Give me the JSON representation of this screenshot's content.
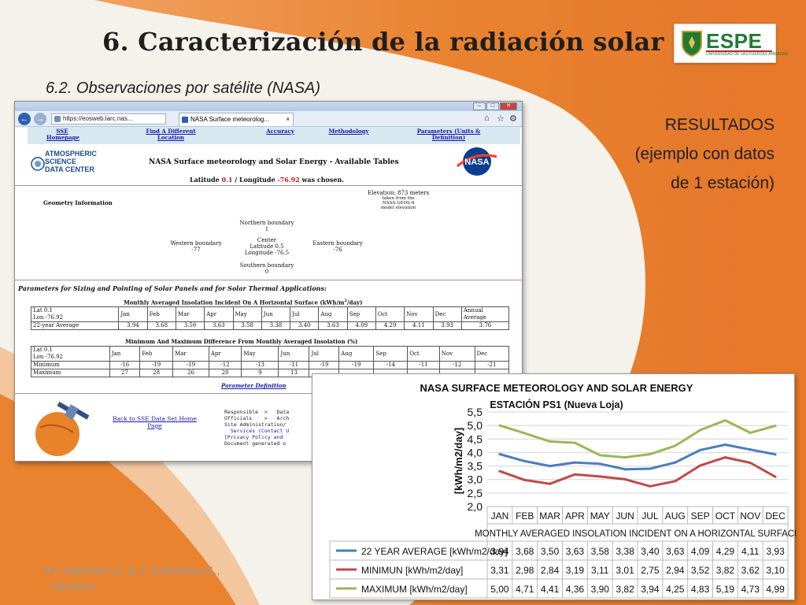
{
  "slide": {
    "title": "6. Caracterización de la radiación solar",
    "subtitle": "6.2. Observaciones  por satélite (NASA)",
    "results": [
      "RESULTADOS",
      "(ejemplo con datos",
      "de 1 estación)"
    ],
    "footer_line1": "J. Martínez A. & J. Asitimbay C.,",
    "footer_line2": "05/2015",
    "logo": {
      "text": "ESPE",
      "subtext": "UNIVERSIDAD DE LAS FUERZAS ARMADAS",
      "tagline": "INNOVACIÓN PARA LA EXCELENCIA"
    }
  },
  "colors": {
    "orange": "#e8792a",
    "logo_green": "#1f7a34",
    "series_avg": "#4a7ebb",
    "series_min": "#be4b48",
    "series_max": "#98b954"
  },
  "browser": {
    "url": "https://eosweb.larc.nas...",
    "tab_title": "NASA Surface meteorolog...",
    "nav_links": [
      "SSE Homepage",
      "Find A Different Location",
      "Accuracy",
      "Methodology",
      "Parameters (Units & Definition)"
    ],
    "asdc_name": [
      "ATMOSPHERIC",
      "SCIENCE",
      "DATA CENTER"
    ],
    "page_title": "NASA Surface meteorology and Solar Energy - Available Tables",
    "latlon": {
      "prefix": "Latitude ",
      "lat": "0.1",
      "mid": " / Longitude ",
      "lon": "-76.92",
      "suffix": " was chosen."
    },
    "geometry_label": "Geometry Information",
    "elevation": {
      "line1": "Elevation: 873 meters",
      "line2": "taken from the",
      "line3": "NASA GEOS-4",
      "line4": "model elevation"
    },
    "boundaries": {
      "north_label": "Northern boundary",
      "north_value": "1",
      "west_label": "Western boundary",
      "west_value": "-77",
      "center_label": "Center",
      "center_lat": "Latitude 0.5",
      "center_lon": "Longitude -76.5",
      "east_label": "Eastern boundary",
      "east_value": "-76",
      "south_label": "Southern boundary",
      "south_value": "0"
    },
    "params_title": "Parameters for Sizing and Pointing of Solar Panels and for Solar Thermal Applications:",
    "table1_title": "Monthly Averaged Insolation Incident On A Horizontal Surface (kWh/m",
    "table1_title_sup": "2",
    "table1_title_end": "/day)",
    "table1": {
      "loc": [
        "Lat 0.1",
        "Lon -76.92"
      ],
      "months": [
        "Jan",
        "Feb",
        "Mar",
        "Apr",
        "May",
        "Jun",
        "Jul",
        "Aug",
        "Sep",
        "Oct",
        "Nov",
        "Dec"
      ],
      "annual_label": [
        "Annual",
        "Average"
      ],
      "row_label": "22-year Average",
      "row_values": [
        "3.94",
        "3.68",
        "3.50",
        "3.63",
        "3.58",
        "3.38",
        "3.40",
        "3.63",
        "4.09",
        "4.29",
        "4.11",
        "3.93",
        "3.76"
      ]
    },
    "table2_title": "Minimum And Maximum Difference From Monthly Averaged Insolation (%)",
    "table2": {
      "loc": [
        "Lat 0.1",
        "Lon -76.92"
      ],
      "months": [
        "Jan",
        "Feb",
        "Mar",
        "Apr",
        "May",
        "Jun",
        "Jul",
        "Aug",
        "Sep",
        "Oct",
        "Nov",
        "Dec"
      ],
      "min_label": "Minimum",
      "min_values": [
        "-16",
        "-19",
        "-19",
        "-12",
        "-13",
        "-11",
        "-19",
        "-19",
        "-14",
        "-11",
        "-12",
        "-21"
      ],
      "max_label": "Maximum",
      "max_values": [
        "27",
        "28",
        "26",
        "20",
        "9",
        "13",
        "",
        "",
        "",
        "",
        "",
        ""
      ]
    },
    "param_def": "Parameter Definition",
    "back_link": [
      "Back to SSE Data Set Home",
      "Page"
    ],
    "responsible": [
      "Responsible  >   Data",
      "Officials    >   Arch",
      "Site Administration/",
      "  Services (Contact U",
      "[Privacy Policy and ",
      "Document generated o"
    ]
  },
  "chart_data": {
    "type": "line",
    "title": "NASA SURFACE METEOROLOGY AND SOLAR ENERGY",
    "subtitle": "ESTACIÓN PS1 (Nueva Loja)",
    "ylabel": "[kWh/m2/day]",
    "xlabel": "MONTHLY AVERAGED INSOLATION INCIDENT ON A HORIZONTAL SURFACE",
    "ylim": [
      2.0,
      5.5
    ],
    "yticks": [
      "5,5",
      "5,0",
      "4,5",
      "4,0",
      "3,5",
      "3,0",
      "2,5",
      "2,0"
    ],
    "categories": [
      "JAN",
      "FEB",
      "MAR",
      "APR",
      "MAY",
      "JUN",
      "JUL",
      "AUG",
      "SEP",
      "OCT",
      "NOV",
      "DEC"
    ],
    "grid": true,
    "series": [
      {
        "name": "22 YEAR AVERAGE [kWh/m2/day]",
        "color": "#4a7ebb",
        "values": [
          3.94,
          3.68,
          3.5,
          3.63,
          3.58,
          3.38,
          3.4,
          3.63,
          4.09,
          4.29,
          4.11,
          3.93
        ],
        "labels": [
          "3,94",
          "3,68",
          "3,50",
          "3,63",
          "3,58",
          "3,38",
          "3,40",
          "3,63",
          "4,09",
          "4,29",
          "4,11",
          "3,93"
        ]
      },
      {
        "name": "MINIMUN [kWh/m2/day]",
        "color": "#be4b48",
        "values": [
          3.31,
          2.98,
          2.84,
          3.19,
          3.11,
          3.01,
          2.75,
          2.94,
          3.52,
          3.82,
          3.62,
          3.1
        ],
        "labels": [
          "3,31",
          "2,98",
          "2,84",
          "3,19",
          "3,11",
          "3,01",
          "2,75",
          "2,94",
          "3,52",
          "3,82",
          "3,62",
          "3,10"
        ]
      },
      {
        "name": "MAXIMUM [kWh/m2/day]",
        "color": "#98b954",
        "values": [
          5.0,
          4.71,
          4.41,
          4.36,
          3.9,
          3.82,
          3.94,
          4.25,
          4.83,
          5.19,
          4.73,
          4.99
        ],
        "labels": [
          "5,00",
          "4,71",
          "4,41",
          "4,36",
          "3,90",
          "3,82",
          "3,94",
          "4,25",
          "4,83",
          "5,19",
          "4,73",
          "4,99"
        ]
      }
    ]
  }
}
